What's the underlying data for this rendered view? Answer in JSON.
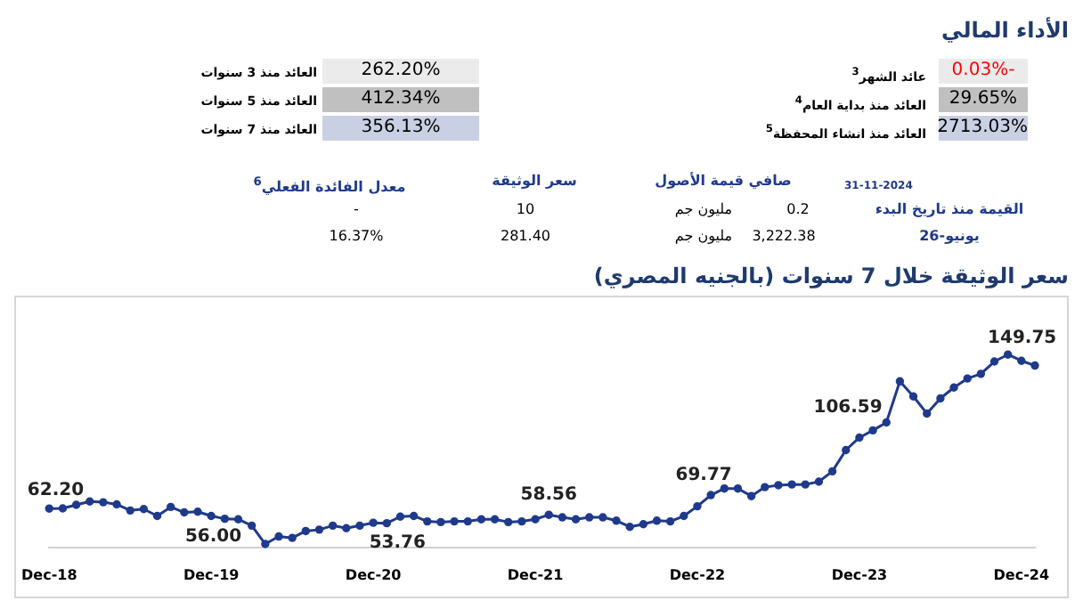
{
  "chart_data": [
    {
      "type": "other",
      "title": "الأداء المالي",
      "annotations": [
        "عائد الشهر$^{3}$",
        "-0.03%",
        "العائد منذ بداية العام$^{4}$",
        "29.65%",
        "العائد منذ انشاء المحفظة$^{5}$",
        "2713.03%",
        "العائد منذ 3 سنوات",
        "262.20%",
        "العائد منذ 5 سنوات",
        "412.34%",
        "العائد منذ 7 سنوات",
        "356.13%",
        "31-11-2024",
        "صافي قيمة الأصول",
        "سعر الوثيقة",
        "معدل الفائدة الفعلي$^{6}$",
        "القيمة منذ تاريخ البدء",
        "0.2",
        "مليون جم",
        "10",
        "-",
        "يونيو-26",
        "3,222.38",
        "مليون جم",
        "281.40",
        "16.37%"
      ]
    },
    {
      "type": "line",
      "title": "سعر الوثيقة خلال 7 سنوات (بالجنيه المصري)",
      "categories": [
        "Dec-18",
        null,
        null,
        null,
        null,
        null,
        null,
        null,
        null,
        null,
        null,
        null,
        "Dec-19",
        null,
        null,
        null,
        null,
        null,
        null,
        null,
        null,
        null,
        null,
        null,
        "Dec-20",
        null,
        null,
        null,
        null,
        null,
        null,
        null,
        null,
        null,
        null,
        null,
        "Dec-21",
        null,
        null,
        null,
        null,
        null,
        null,
        null,
        null,
        null,
        null,
        null,
        "Dec-22",
        null,
        null,
        null,
        null,
        null,
        null,
        null,
        null,
        null,
        null,
        null,
        "Dec-23",
        null,
        null,
        null,
        null,
        null,
        null,
        null,
        null,
        null,
        null,
        null,
        "Dec-24",
        null
      ],
      "values": [
        62.1,
        62.2,
        64.2,
        66.1,
        65.7,
        64.5,
        61.0,
        61.8,
        57.9,
        63.0,
        59.9,
        60.3,
        57.9,
        56.3,
        56.0,
        52.4,
        41.9,
        46.2,
        45.4,
        49.3,
        50.1,
        52.4,
        50.9,
        52.4,
        54.0,
        53.76,
        57.5,
        57.9,
        54.8,
        54.4,
        54.8,
        54.8,
        56.0,
        56.0,
        54.4,
        54.8,
        56.0,
        58.56,
        57.1,
        56.0,
        57.1,
        57.1,
        55.2,
        51.7,
        53.2,
        55.2,
        54.8,
        57.9,
        63.4,
        69.77,
        73.5,
        73.5,
        69.2,
        74.3,
        75.4,
        75.8,
        75.8,
        77.4,
        83.3,
        95.4,
        102.5,
        106.59,
        111.1,
        134.5,
        125.9,
        116.2,
        124.8,
        131.0,
        136.1,
        138.8,
        145.8,
        149.75,
        146.2,
        143.5
      ],
      "value_labels": [
        null,
        "62.20",
        null,
        null,
        null,
        null,
        null,
        null,
        null,
        null,
        null,
        null,
        null,
        null,
        "56.00",
        null,
        null,
        null,
        null,
        null,
        null,
        null,
        null,
        null,
        null,
        "53.76",
        null,
        null,
        null,
        null,
        null,
        null,
        null,
        null,
        null,
        null,
        null,
        "58.56",
        null,
        null,
        null,
        null,
        null,
        null,
        null,
        null,
        null,
        null,
        null,
        "69.77",
        null,
        null,
        null,
        null,
        null,
        null,
        null,
        null,
        null,
        null,
        null,
        "106.59",
        null,
        null,
        null,
        null,
        null,
        null,
        null,
        null,
        null,
        "149.75",
        null,
        null
      ],
      "color": "#1f3a8c",
      "marker": "circle",
      "tick_labels": "x"
    }
  ]
}
